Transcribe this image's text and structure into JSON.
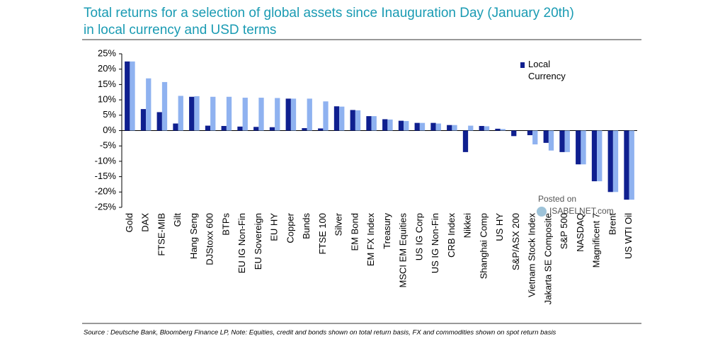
{
  "chart_data": {
    "type": "bar",
    "title": [
      "Total returns for a selection of global assets since Inauguration Day (January 20th)",
      "in local currency and USD terms"
    ],
    "categories": [
      "Gold",
      "DAX",
      "FTSE-MIB",
      "Gilt",
      "Hang Seng",
      "DJStoxx 600",
      "BTPs",
      "EU IG Non-Fin",
      "EU Sovereign",
      "EU HY",
      "Copper",
      "Bunds",
      "FTSE 100",
      "Silver",
      "EM Bond",
      "EM FX Index",
      "Treasury",
      "MSCI EM Equities",
      "US IG Corp",
      "US IG Non-Fin",
      "CRB Index",
      "Nikkei",
      "Shanghai Comp",
      "US HY",
      "S&P/ASX 200",
      "Vietnam Stock Index",
      "Jakarta SE Composite",
      "S&P 500",
      "NASDAQ",
      "Magnificent 7",
      "Brent",
      "US WTI Oil"
    ],
    "series": [
      {
        "name": "Local Currency",
        "color": "#0f1f8f",
        "values": [
          22.5,
          7,
          6,
          2.3,
          11,
          1.6,
          1.5,
          1.3,
          1.2,
          1.1,
          10.4,
          0.8,
          0.7,
          7.9,
          6.7,
          4.7,
          3.7,
          3.2,
          2.5,
          2.5,
          1.8,
          -7,
          1.5,
          0.6,
          -1.8,
          -1.5,
          -4,
          -7,
          -11,
          -16.5,
          -20,
          -22.5
        ]
      },
      {
        "color": "#8fb2f0",
        "values": [
          22.5,
          17,
          15.8,
          11.3,
          11.2,
          11,
          11,
          10.7,
          10.7,
          10.6,
          10.4,
          10.4,
          9.5,
          7.8,
          6.6,
          4.7,
          3.6,
          3.1,
          2.5,
          2.3,
          1.8,
          1.6,
          1.4,
          0.5,
          0,
          -4.5,
          -6.5,
          -7,
          -11,
          -16.5,
          -20,
          -22.5
        ]
      }
    ],
    "ylim": [
      -25,
      25
    ],
    "yticks": [
      {
        "value": -25,
        "label": "-25%"
      },
      {
        "value": -20,
        "label": "-20%"
      },
      {
        "value": -15,
        "label": "-15%"
      },
      {
        "value": -10,
        "label": "-10%"
      },
      {
        "value": -5,
        "label": "-5%"
      },
      {
        "value": 0,
        "label": "0%"
      },
      {
        "value": 5,
        "label": "5%"
      },
      {
        "value": 10,
        "label": "10%"
      },
      {
        "value": 15,
        "label": "15%"
      },
      {
        "value": 20,
        "label": "20%"
      },
      {
        "value": 25,
        "label": "25%"
      }
    ],
    "watermark": [
      "Posted on",
      "ISABELNET.com"
    ],
    "source": "Source : Deutsche Bank, Bloomberg Finance LP, Note: Equities, credit and bonds shown on total return basis, FX and commodities shown on spot return basis"
  }
}
